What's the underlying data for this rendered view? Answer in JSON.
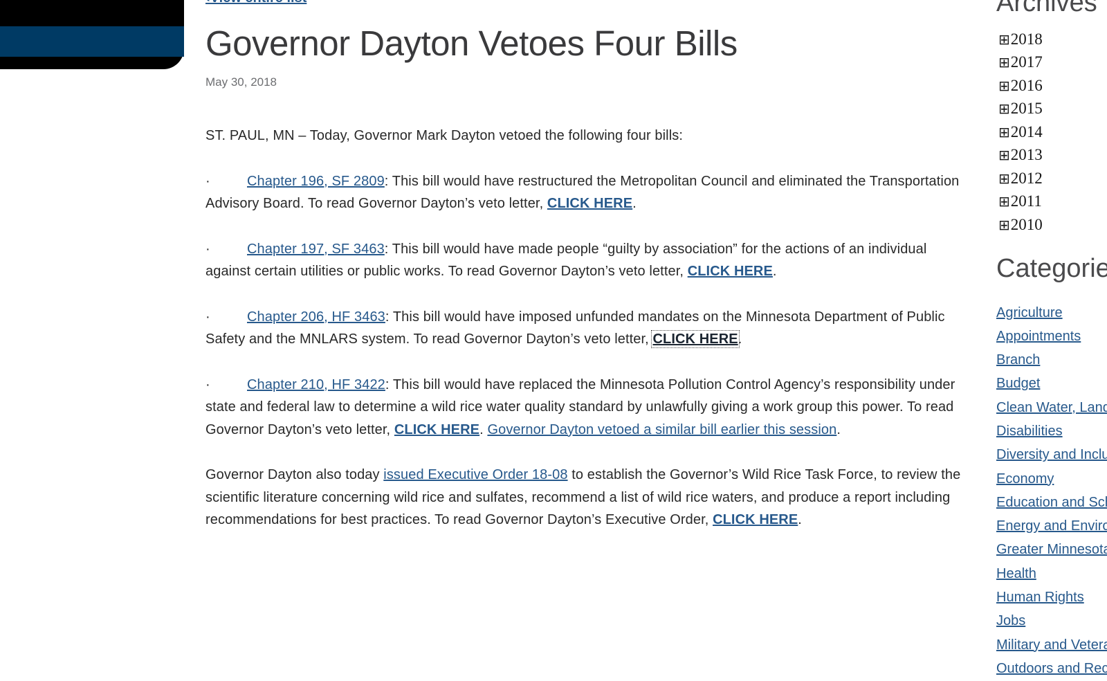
{
  "colors": {
    "logo_black": "#000000",
    "logo_blue_stripe": "#003a64",
    "link_blue": "#27598c",
    "focused_link_dark": "#1b2531",
    "heading_gray": "#4a4a4c",
    "date_gray": "#6d6e71",
    "body_text": "#292929"
  },
  "article": {
    "back_link": "‹View entire list",
    "title": "Governor Dayton Vetoes Four Bills",
    "date": "May 30, 2018",
    "bullet_char": "·",
    "paragraphs": [
      {
        "bullet": false,
        "runs": [
          {
            "style": "plain",
            "text": "ST. PAUL, MN – Today, Governor Mark Dayton vetoed the following four bills:"
          }
        ]
      },
      {
        "bullet": true,
        "runs": [
          {
            "style": "link",
            "name": "chapter-196-sf-2809-link",
            "text": "Chapter 196, SF 2809"
          },
          {
            "style": "plain",
            "text": ": This bill would have restructured the Metropolitan Council and eliminated the Transportation Advisory Board. To read Governor Dayton’s veto letter, "
          },
          {
            "style": "linkbold",
            "name": "click-here-link",
            "text": "CLICK HERE"
          },
          {
            "style": "plain",
            "text": "."
          }
        ]
      },
      {
        "bullet": true,
        "runs": [
          {
            "style": "link",
            "name": "chapter-197-sf-3463-link",
            "text": "Chapter 197, SF 3463"
          },
          {
            "style": "plain",
            "text": ": This bill would have made people “guilty by association” for the actions of an individual against certain utilities or public works. To read Governor Dayton’s veto letter, "
          },
          {
            "style": "linkbold",
            "name": "click-here-link",
            "text": "CLICK HERE"
          },
          {
            "style": "plain",
            "text": "."
          }
        ]
      },
      {
        "bullet": true,
        "runs": [
          {
            "style": "link",
            "name": "chapter-206-hf-3463-link",
            "text": "Chapter 206, HF 3463"
          },
          {
            "style": "plain",
            "text": ": This bill would have imposed unfunded mandates on the Minnesota Department of Public Safety and the MNLARS system. To read Governor Dayton’s veto letter, "
          },
          {
            "style": "linkfocus",
            "name": "click-here-link-focused",
            "text": "CLICK HERE"
          },
          {
            "style": "plain",
            "text": "."
          }
        ]
      },
      {
        "bullet": true,
        "runs": [
          {
            "style": "link",
            "name": "chapter-210-hf-3422-link",
            "text": "Chapter 210, HF 3422"
          },
          {
            "style": "plain",
            "text": ": This bill would have replaced the Minnesota Pollution Control Agency’s responsibility under state and federal law to determine a wild rice water quality standard by unlawfully giving a work group this power. To read Governor Dayton’s veto letter, "
          },
          {
            "style": "linkbold",
            "name": "click-here-link",
            "text": "CLICK HERE"
          },
          {
            "style": "plain",
            "text": ". "
          },
          {
            "style": "link",
            "name": "similar-bill-link",
            "text": "Governor Dayton vetoed a similar bill earlier this session"
          },
          {
            "style": "plain",
            "text": "."
          }
        ]
      },
      {
        "bullet": false,
        "runs": [
          {
            "style": "plain",
            "text": "Governor Dayton also today "
          },
          {
            "style": "link",
            "name": "executive-order-18-08-link",
            "text": "issued Executive Order 18-08"
          },
          {
            "style": "plain",
            "text": " to establish the Governor’s Wild Rice Task Force, to review the scientific literature concerning wild rice and sulfates, recommend a list of wild rice waters, and produce a report including recommendations for best practices. To read Governor Dayton’s Executive Order, "
          },
          {
            "style": "linkbold",
            "name": "click-here-link",
            "text": "CLICK HERE"
          },
          {
            "style": "plain",
            "text": "."
          }
        ]
      }
    ]
  },
  "sidebar": {
    "archives": {
      "title": "Archives",
      "expand_icon": "⊞",
      "years": [
        "2018",
        "2017",
        "2016",
        "2015",
        "2014",
        "2013",
        "2012",
        "2011",
        "2010"
      ]
    },
    "categories": {
      "title": "Categories",
      "items": [
        "Agriculture",
        "Appointments",
        "Branch",
        "Budget",
        "Clean Water, Land and Legacy",
        "Disabilities",
        "Diversity and Inclusion",
        "Economy",
        "Education and Schools",
        "Energy and Environment",
        "Greater Minnesota",
        "Health",
        "Human Rights",
        "Jobs",
        "Military and Veterans",
        "Outdoors and Recreation"
      ]
    }
  }
}
